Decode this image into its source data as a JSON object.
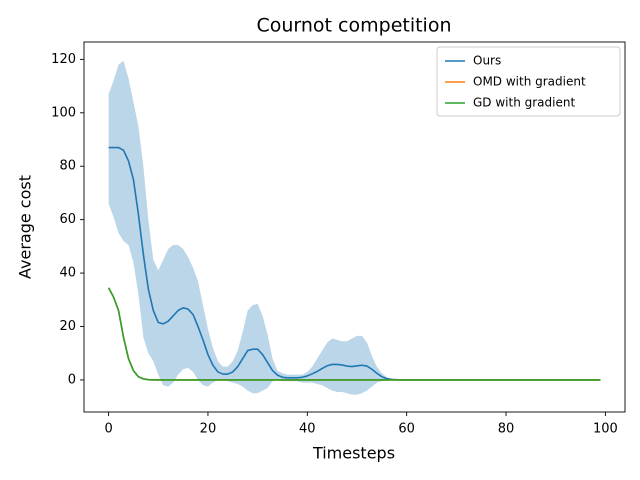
{
  "chart_data": {
    "type": "line",
    "title": "Cournot competition",
    "xlabel": "Timesteps",
    "ylabel": "Average cost",
    "x": [
      0,
      1,
      2,
      3,
      4,
      5,
      6,
      7,
      8,
      9,
      10,
      11,
      12,
      13,
      14,
      15,
      16,
      17,
      18,
      19,
      20,
      21,
      22,
      23,
      24,
      25,
      26,
      27,
      28,
      29,
      30,
      31,
      32,
      33,
      34,
      35,
      36,
      37,
      38,
      39,
      40,
      41,
      42,
      43,
      44,
      45,
      46,
      47,
      48,
      49,
      50,
      51,
      52,
      53,
      54,
      55,
      56,
      57,
      58,
      59,
      60,
      70,
      80,
      90,
      99
    ],
    "band": {
      "color": "#1f77b4",
      "upper": [
        107,
        112,
        118,
        119.5,
        113,
        104,
        95,
        80,
        60,
        45,
        41,
        45,
        49,
        50.5,
        50.5,
        49,
        46,
        42,
        37,
        28,
        19,
        12,
        7,
        5,
        5,
        7,
        11,
        18,
        26,
        28,
        28.5,
        24,
        17,
        8,
        3.5,
        2.5,
        2,
        2,
        2,
        2,
        3,
        5,
        8,
        11,
        14,
        15.5,
        15,
        14.5,
        14.5,
        15.5,
        16.5,
        16.5,
        14,
        9,
        5,
        2.5,
        1,
        0.5,
        0.2,
        0.1,
        0,
        0,
        0,
        0,
        0
      ],
      "lower": [
        66,
        61,
        55,
        52,
        50.5,
        44,
        32,
        16,
        10,
        7,
        2,
        -2,
        -2.5,
        -1,
        2,
        4,
        4.5,
        3,
        0,
        -2,
        -2.5,
        -1,
        0,
        0,
        -0.5,
        -1,
        -1.5,
        -2.5,
        -4,
        -5,
        -5,
        -4,
        -3,
        -0.5,
        0,
        -0.5,
        -0.5,
        -0.5,
        -0.5,
        -1,
        -1,
        -1,
        -1.5,
        -2,
        -3,
        -4,
        -4.5,
        -4.5,
        -5,
        -5.5,
        -5.5,
        -5,
        -4,
        -2.5,
        -1,
        -0.5,
        -0.2,
        0,
        0,
        0,
        0,
        0,
        0,
        0,
        0
      ]
    },
    "series": [
      {
        "name": "Ours",
        "color": "#1f77b4",
        "values": [
          87,
          87,
          87,
          86,
          82,
          75,
          62,
          47,
          34,
          26,
          21.5,
          21,
          22,
          24,
          26,
          27,
          26.5,
          24.5,
          20,
          15,
          9.5,
          5.5,
          3,
          2.2,
          2.2,
          3,
          5,
          8,
          11,
          11.5,
          11.5,
          9.5,
          6.5,
          3.5,
          1.8,
          1,
          0.8,
          0.8,
          0.8,
          1,
          1.5,
          2.3,
          3.2,
          4.3,
          5.3,
          5.8,
          5.8,
          5.6,
          5.2,
          5,
          5.3,
          5.5,
          5.2,
          4,
          2.5,
          1.2,
          0.5,
          0.2,
          0.1,
          0,
          0,
          0,
          0,
          0,
          0
        ]
      },
      {
        "name": "OMD with gradient",
        "color": "#ff7f0e",
        "values": [
          34.5,
          31,
          26,
          16,
          8,
          3.5,
          1.2,
          0.4,
          0.1,
          0,
          0,
          0,
          0,
          0,
          0,
          0,
          0,
          0,
          0,
          0,
          0,
          0,
          0,
          0,
          0,
          0,
          0,
          0,
          0,
          0,
          0,
          0,
          0,
          0,
          0,
          0,
          0,
          0,
          0,
          0,
          0,
          0,
          0,
          0,
          0,
          0,
          0,
          0,
          0,
          0,
          0,
          0,
          0,
          0,
          0,
          0,
          0,
          0,
          0,
          0,
          0,
          0,
          0,
          0,
          0
        ]
      },
      {
        "name": "GD with gradient",
        "color": "#2ca02c",
        "values": [
          34.5,
          31,
          26,
          16,
          8,
          3.5,
          1.2,
          0.4,
          0.1,
          0,
          0,
          0,
          0,
          0,
          0,
          0,
          0,
          0,
          0,
          0,
          0,
          0,
          0,
          0,
          0,
          0,
          0,
          0,
          0,
          0,
          0,
          0,
          0,
          0,
          0,
          0,
          0,
          0,
          0,
          0,
          0,
          0,
          0,
          0,
          0,
          0,
          0,
          0,
          0,
          0,
          0,
          0,
          0,
          0,
          0,
          0,
          0,
          0,
          0,
          0,
          0,
          0,
          0,
          0,
          0
        ]
      }
    ],
    "xlim": [
      -4.95,
      103.95
    ],
    "ylim": [
      -12,
      126.5
    ],
    "xticks": [
      0,
      20,
      40,
      60,
      80,
      100
    ],
    "yticks": [
      0,
      20,
      40,
      60,
      80,
      100,
      120
    ],
    "legend": "upper right"
  }
}
